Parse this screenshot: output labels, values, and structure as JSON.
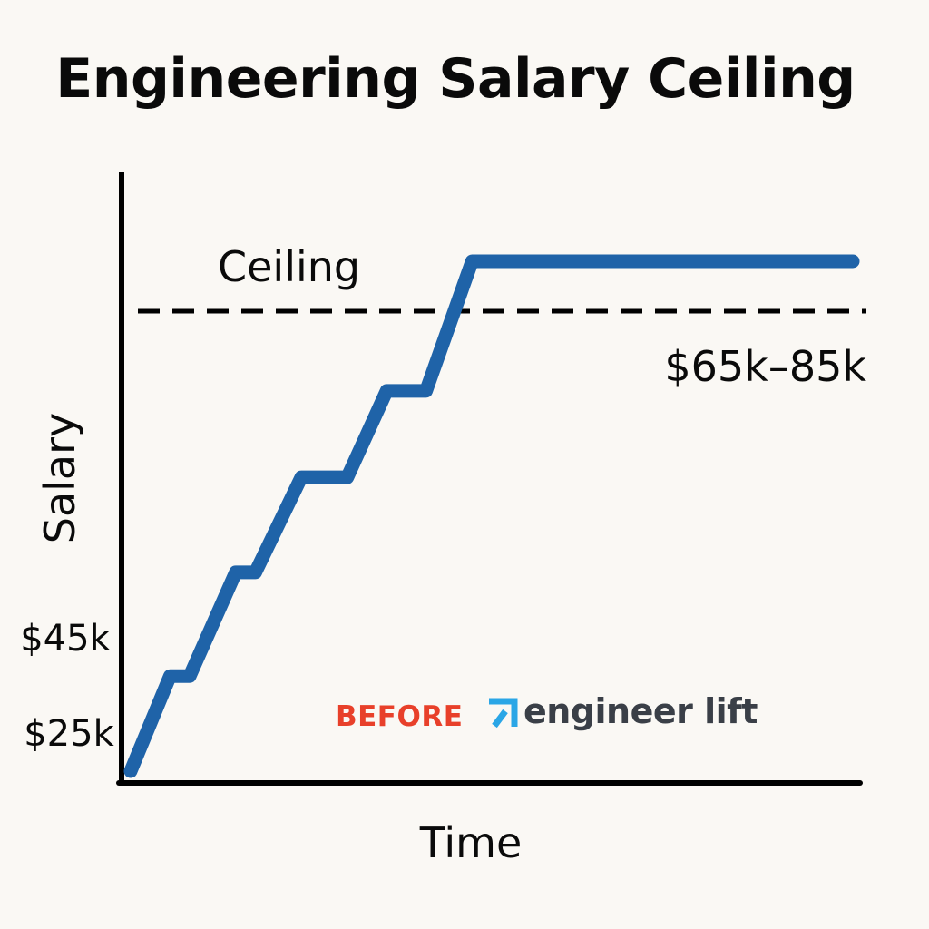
{
  "chart_data": {
    "type": "line",
    "title": "Engineering Salary Ceiling",
    "xlabel": "Time",
    "ylabel": "Salary",
    "y_tick_labels": [
      "$25k",
      "$45k"
    ],
    "ceiling": {
      "label": "Ceiling",
      "range_label": "$65k–85k",
      "style": "dashed"
    },
    "series": [
      {
        "color": "#1f63a8",
        "shape": "staircase rising then flat plateau above ceiling",
        "points": [
          [
            0.0,
            0.0
          ],
          [
            0.6,
            1.1
          ],
          [
            0.9,
            1.1
          ],
          [
            1.6,
            2.3
          ],
          [
            1.9,
            2.3
          ],
          [
            2.6,
            3.4
          ],
          [
            3.3,
            3.4
          ],
          [
            3.9,
            4.4
          ],
          [
            4.5,
            4.4
          ],
          [
            5.2,
            5.9
          ],
          [
            11.0,
            5.9
          ]
        ]
      }
    ],
    "grid": false,
    "axis_color": "#000000"
  },
  "watermark": {
    "before_text": "BEFORE",
    "before_color": "#e8402a",
    "logo_icon": "arrow-up-right-icon",
    "logo_icon_color": "#2aa6e6",
    "brand_text": "engineer lift",
    "brand_color": "#3a3f47"
  }
}
